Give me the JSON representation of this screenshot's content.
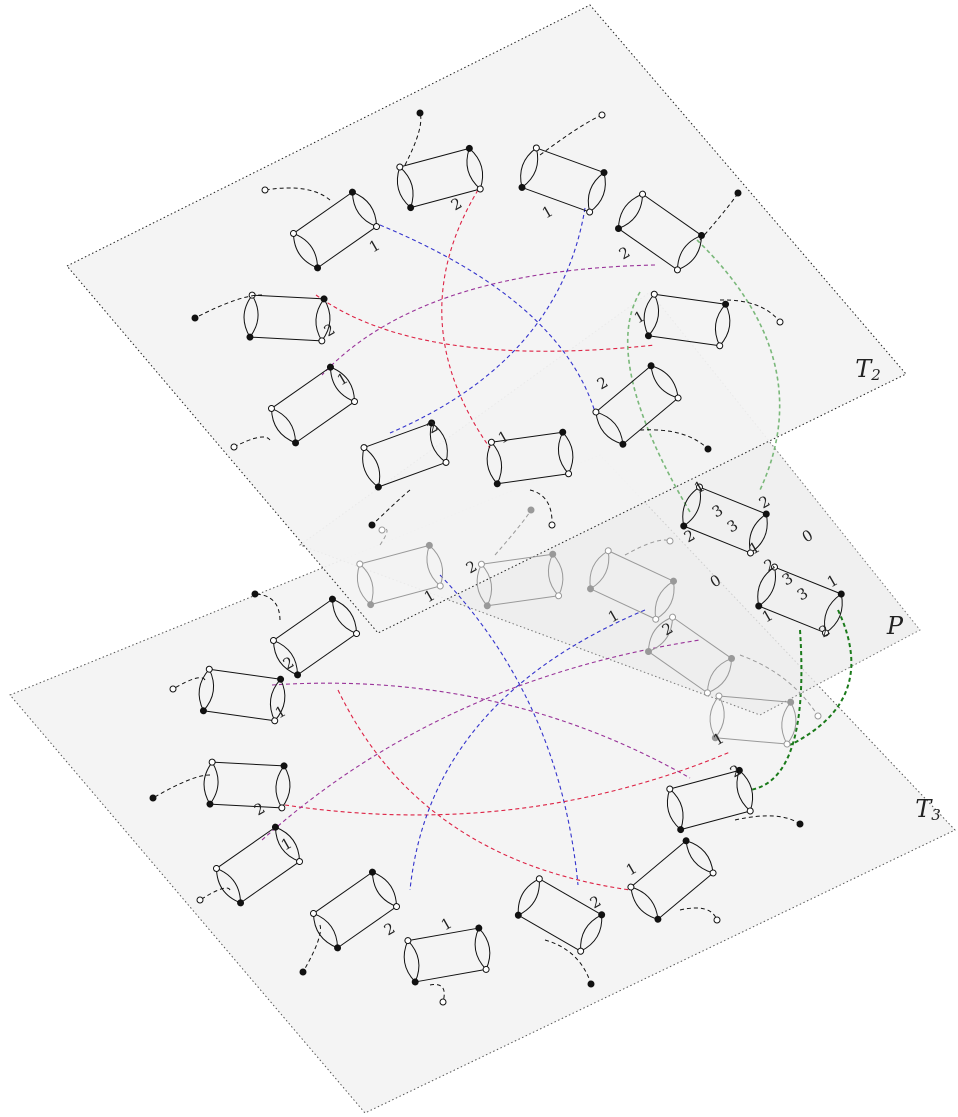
{
  "planes": [
    {
      "name": "T",
      "sub": "2"
    },
    {
      "name": "P",
      "sub": ""
    },
    {
      "name": "T",
      "sub": "3"
    }
  ],
  "edge_labels": [
    "2",
    "1",
    "2",
    "1",
    "1",
    "2",
    "1",
    "2",
    "1",
    "2",
    "1",
    "2",
    "3",
    "3",
    "2",
    "0",
    "1",
    "2",
    "3",
    "3",
    "0",
    "1",
    "1",
    "2",
    "2",
    "1",
    "2",
    "1",
    "2",
    "1",
    "2",
    "1",
    "2",
    "1",
    "2",
    "1",
    "2",
    "1"
  ]
}
